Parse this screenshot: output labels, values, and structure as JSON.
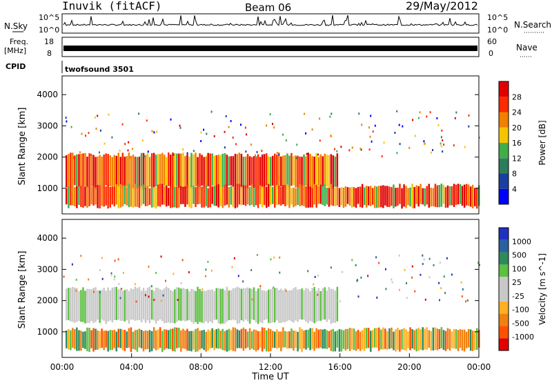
{
  "header": {
    "title": "Inuvik (fitACF)",
    "beam": "Beam 06",
    "date": "29/May/2012"
  },
  "strips": {
    "nsky_label": "N.Sky",
    "nsearch_label": "N.Search",
    "count_ticks": [
      "10^5",
      "10^0"
    ],
    "freq_label_1": "Freq.",
    "freq_label_2": "[MHz]",
    "freq_ticks": [
      "18",
      "8"
    ],
    "nave_label": "Nave",
    "nave_ticks": [
      "60",
      "0"
    ],
    "cpid_label": "CPID",
    "cpid_value": "twofsound 3501"
  },
  "colors": {
    "power": [
      "#0000ff",
      "#1a3fa0",
      "#2e7d5a",
      "#3fae48",
      "#f5c400",
      "#f08000",
      "#ff2a00",
      "#e00000"
    ],
    "velocity": [
      "#2030c0",
      "#2a60a0",
      "#2e8a5a",
      "#5cc040",
      "#c8c8c8",
      "#c8c8c8",
      "#ffb020",
      "#f08010",
      "#ff5000",
      "#e00000"
    ]
  },
  "chart_data": [
    {
      "type": "heatmap",
      "name": "power",
      "ylabel": "Slant Range [km]",
      "xlabel": "",
      "y_ticks": [
        "1000",
        "2000",
        "3000",
        "4000"
      ],
      "ylim": [
        180,
        4600
      ],
      "colorbar_label": "Power [dB]",
      "colorbar_ticks": [
        "4",
        "8",
        "12",
        "16",
        "20",
        "24",
        "28"
      ],
      "colorbar_range": [
        0,
        32
      ],
      "bands": [
        {
          "range_km": [
            1100,
            2000
          ],
          "power_db": 25,
          "start_h": 0.2,
          "end_h": 15.8
        },
        {
          "range_km": [
            500,
            1000
          ],
          "power_db": 27,
          "start_h": 0.2,
          "end_h": 24
        }
      ]
    },
    {
      "type": "heatmap",
      "name": "velocity",
      "ylabel": "Slant Range [km]",
      "xlabel": "Time UT",
      "x_ticks": [
        "00:00",
        "04:00",
        "08:00",
        "12:00",
        "16:00",
        "20:00",
        "00:00"
      ],
      "y_ticks": [
        "1000",
        "2000",
        "3000",
        "4000"
      ],
      "ylim": [
        180,
        4600
      ],
      "colorbar_label": "Velocity [m s^-1]",
      "colorbar_ticks": [
        "1000",
        "500",
        "100",
        "25",
        "-25",
        "-100",
        "-500",
        "-1000"
      ],
      "bands": [
        {
          "range_km": [
            1400,
            2300
          ],
          "velocity": 0,
          "start_h": 0.2,
          "end_h": 15.8
        },
        {
          "range_km": [
            500,
            1000
          ],
          "velocity": -200,
          "start_h": 0.2,
          "end_h": 24
        }
      ]
    }
  ]
}
